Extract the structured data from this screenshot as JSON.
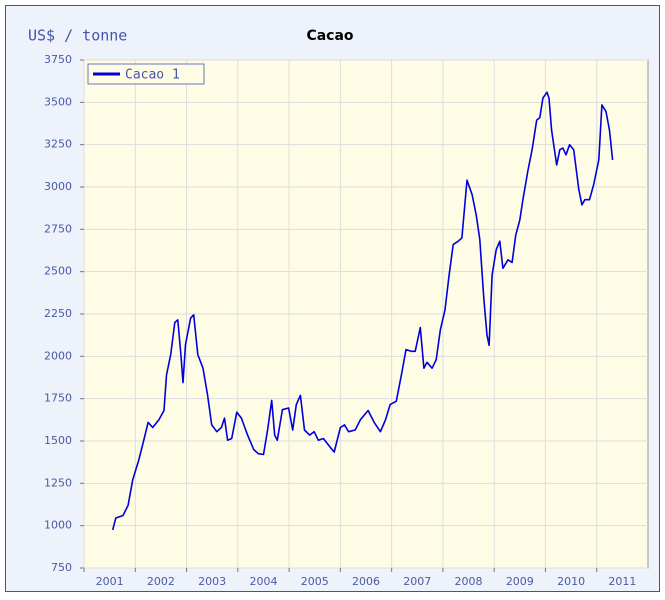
{
  "chart_data": {
    "type": "line",
    "title": "Cacao",
    "y_label": "US$ / tonne",
    "x": [
      2001.56,
      2001.62,
      2001.76,
      2001.86,
      2001.95,
      2002.07,
      2002.17,
      2002.25,
      2002.34,
      2002.46,
      2002.56,
      2002.61,
      2002.69,
      2002.77,
      2002.83,
      2002.89,
      2002.93,
      2002.98,
      2003.08,
      2003.14,
      2003.22,
      2003.32,
      2003.41,
      2003.49,
      2003.59,
      2003.68,
      2003.74,
      2003.8,
      2003.88,
      2003.98,
      2004.07,
      2004.19,
      2004.31,
      2004.4,
      2004.5,
      2004.58,
      2004.66,
      2004.72,
      2004.77,
      2004.87,
      2004.99,
      2005.07,
      2005.14,
      2005.22,
      2005.3,
      2005.4,
      2005.49,
      2005.57,
      2005.67,
      2005.81,
      2005.88,
      2006.0,
      2006.08,
      2006.16,
      2006.29,
      2006.39,
      2006.54,
      2006.66,
      2006.78,
      2006.88,
      2006.97,
      2007.09,
      2007.19,
      2007.28,
      2007.38,
      2007.46,
      2007.56,
      2007.63,
      2007.69,
      2007.79,
      2007.87,
      2007.95,
      2008.04,
      2008.12,
      2008.2,
      2008.3,
      2008.37,
      2008.47,
      2008.57,
      2008.65,
      2008.72,
      2008.8,
      2008.86,
      2008.9,
      2008.96,
      2009.04,
      2009.11,
      2009.17,
      2009.27,
      2009.35,
      2009.42,
      2009.5,
      2009.56,
      2009.66,
      2009.74,
      2009.83,
      2009.89,
      2009.95,
      2010.03,
      2010.07,
      2010.12,
      2010.22,
      2010.28,
      2010.34,
      2010.4,
      2010.47,
      2010.55,
      2010.65,
      2010.71,
      2010.77,
      2010.86,
      2010.94,
      2011.04,
      2011.1,
      2011.18,
      2011.25,
      2011.31
    ],
    "series": [
      {
        "name": "Cacao 1",
        "color": "#0000dd",
        "values": [
          975,
          1045,
          1060,
          1120,
          1270,
          1390,
          1510,
          1610,
          1580,
          1625,
          1680,
          1890,
          2010,
          2200,
          2215,
          2010,
          1845,
          2070,
          2225,
          2245,
          2010,
          1930,
          1770,
          1595,
          1555,
          1580,
          1635,
          1505,
          1515,
          1670,
          1635,
          1535,
          1450,
          1425,
          1420,
          1565,
          1740,
          1535,
          1505,
          1685,
          1695,
          1565,
          1715,
          1770,
          1565,
          1535,
          1555,
          1505,
          1515,
          1460,
          1435,
          1580,
          1595,
          1555,
          1565,
          1625,
          1680,
          1610,
          1555,
          1625,
          1715,
          1735,
          1890,
          2040,
          2030,
          2030,
          2170,
          1930,
          1965,
          1930,
          1980,
          2155,
          2275,
          2480,
          2660,
          2680,
          2700,
          3040,
          2955,
          2835,
          2690,
          2335,
          2125,
          2065,
          2480,
          2630,
          2680,
          2520,
          2570,
          2555,
          2715,
          2805,
          2925,
          3100,
          3220,
          3395,
          3410,
          3525,
          3560,
          3525,
          3335,
          3130,
          3220,
          3230,
          3190,
          3250,
          3220,
          2985,
          2895,
          2925,
          2925,
          3015,
          3160,
          3485,
          3445,
          3335,
          3160
        ]
      }
    ],
    "xlim": [
      2001,
      2012
    ],
    "xticks": [
      2001,
      2002,
      2003,
      2004,
      2005,
      2006,
      2007,
      2008,
      2009,
      2010,
      2011
    ],
    "ylim": [
      750,
      3750
    ],
    "yticks": [
      750,
      1000,
      1250,
      1500,
      1750,
      2000,
      2250,
      2500,
      2750,
      3000,
      3250,
      3500,
      3750
    ],
    "grid": true,
    "legend": "upper left"
  }
}
